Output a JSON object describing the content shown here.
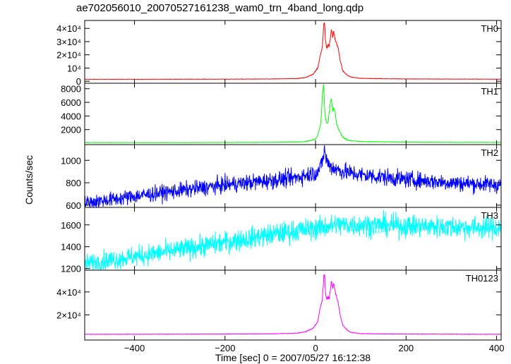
{
  "chart_data": {
    "type": "line",
    "title": "ae702056010_20070527161238_wam0_trn_4band_long.qdp",
    "xlabel": "Time [sec] 0 = 2007/05/27 16:12:38",
    "ylabel": "Counts/sec",
    "xlim": [
      -510,
      410
    ],
    "xticks": [
      {
        "value": -400,
        "label": "−400"
      },
      {
        "value": -200,
        "label": "−200"
      },
      {
        "value": 0,
        "label": "0"
      },
      {
        "value": 200,
        "label": "200"
      },
      {
        "value": 400,
        "label": "400"
      }
    ],
    "panels": [
      {
        "name": "TH0",
        "color": "#ff0000",
        "ylim": [
          -1500,
          46000
        ],
        "yticks": [
          {
            "value": 0,
            "label": "0"
          },
          {
            "value": 10000,
            "label": "10⁴"
          },
          {
            "value": 20000,
            "label": "2×10⁴"
          },
          {
            "value": 30000,
            "label": "3×10⁴"
          },
          {
            "value": 40000,
            "label": "4×10⁴"
          }
        ],
        "x": [
          -510,
          -400,
          -300,
          -200,
          -100,
          -40,
          -20,
          -5,
          5,
          10,
          15,
          18,
          20,
          22,
          25,
          28,
          30,
          33,
          35,
          38,
          40,
          43,
          45,
          50,
          55,
          60,
          70,
          80,
          100,
          150,
          200,
          300,
          410
        ],
        "y": [
          1500,
          1500,
          1550,
          1600,
          1700,
          2000,
          3000,
          5500,
          10000,
          19000,
          26000,
          42000,
          45000,
          30000,
          25000,
          28000,
          26000,
          33000,
          40000,
          33000,
          38000,
          32000,
          30000,
          25000,
          15000,
          8000,
          4500,
          3000,
          2200,
          1900,
          1750,
          1650,
          1600
        ]
      },
      {
        "name": "TH1",
        "color": "#00ff00",
        "ylim": [
          -200,
          8800
        ],
        "yticks": [
          {
            "value": 2000,
            "label": "2000"
          },
          {
            "value": 4000,
            "label": "4000"
          },
          {
            "value": 6000,
            "label": "6000"
          },
          {
            "value": 8000,
            "label": "8000"
          }
        ],
        "x": [
          -510,
          -400,
          -300,
          -200,
          -100,
          -30,
          -10,
          0,
          5,
          10,
          12,
          15,
          18,
          20,
          22,
          25,
          28,
          32,
          35,
          38,
          40,
          43,
          46,
          50,
          55,
          60,
          70,
          80,
          100,
          200,
          300,
          410
        ],
        "y": [
          100,
          100,
          100,
          110,
          130,
          200,
          400,
          600,
          1200,
          2400,
          3200,
          7000,
          8600,
          5000,
          3500,
          3000,
          3200,
          5500,
          6500,
          4500,
          5200,
          4800,
          3000,
          2200,
          1500,
          900,
          500,
          350,
          250,
          170,
          130,
          120
        ]
      },
      {
        "name": "TH2",
        "color": "#0000ff",
        "ylim": [
          580,
          1140
        ],
        "yticks": [
          {
            "value": 600,
            "label": "600"
          },
          {
            "value": 800,
            "label": "800"
          },
          {
            "value": 1000,
            "label": "1000"
          }
        ],
        "x": [
          -510,
          -450,
          -400,
          -300,
          -200,
          -100,
          -50,
          0,
          10,
          18,
          20,
          22,
          25,
          30,
          40,
          60,
          100,
          150,
          200,
          300,
          410
        ],
        "y": [
          620,
          650,
          680,
          730,
          780,
          820,
          840,
          890,
          920,
          1050,
          1110,
          1040,
          990,
          960,
          930,
          900,
          870,
          850,
          830,
          800,
          780
        ]
      },
      {
        "name": "TH3",
        "color": "#00ffff",
        "ylim": [
          1185,
          1760
        ],
        "yticks": [
          {
            "value": 1200,
            "label": "1200"
          },
          {
            "value": 1400,
            "label": "1400"
          },
          {
            "value": 1600,
            "label": "1600"
          }
        ],
        "x": [
          -510,
          -450,
          -400,
          -300,
          -200,
          -100,
          0,
          50,
          100,
          200,
          300,
          410
        ],
        "y": [
          1240,
          1280,
          1310,
          1370,
          1440,
          1510,
          1570,
          1600,
          1600,
          1590,
          1580,
          1570
        ]
      },
      {
        "name": "TH0123",
        "color": "#ff00ff",
        "ylim": [
          -2000,
          59000
        ],
        "yticks": [
          {
            "value": 20000,
            "label": "2×10⁴"
          },
          {
            "value": 40000,
            "label": "4×10⁴"
          }
        ],
        "x": [
          -510,
          -400,
          -300,
          -200,
          -100,
          -40,
          -20,
          -5,
          5,
          10,
          15,
          18,
          20,
          22,
          25,
          28,
          30,
          33,
          35,
          38,
          40,
          43,
          45,
          50,
          55,
          60,
          70,
          80,
          100,
          150,
          200,
          300,
          410
        ],
        "y": [
          3000,
          3000,
          3100,
          3200,
          3400,
          4000,
          5500,
          8500,
          14000,
          26000,
          33000,
          52000,
          56000,
          38000,
          33000,
          36000,
          34000,
          42000,
          51000,
          42000,
          48000,
          41000,
          38000,
          31000,
          19000,
          11000,
          6500,
          4500,
          3600,
          3300,
          3200,
          3100,
          3000
        ]
      }
    ]
  }
}
